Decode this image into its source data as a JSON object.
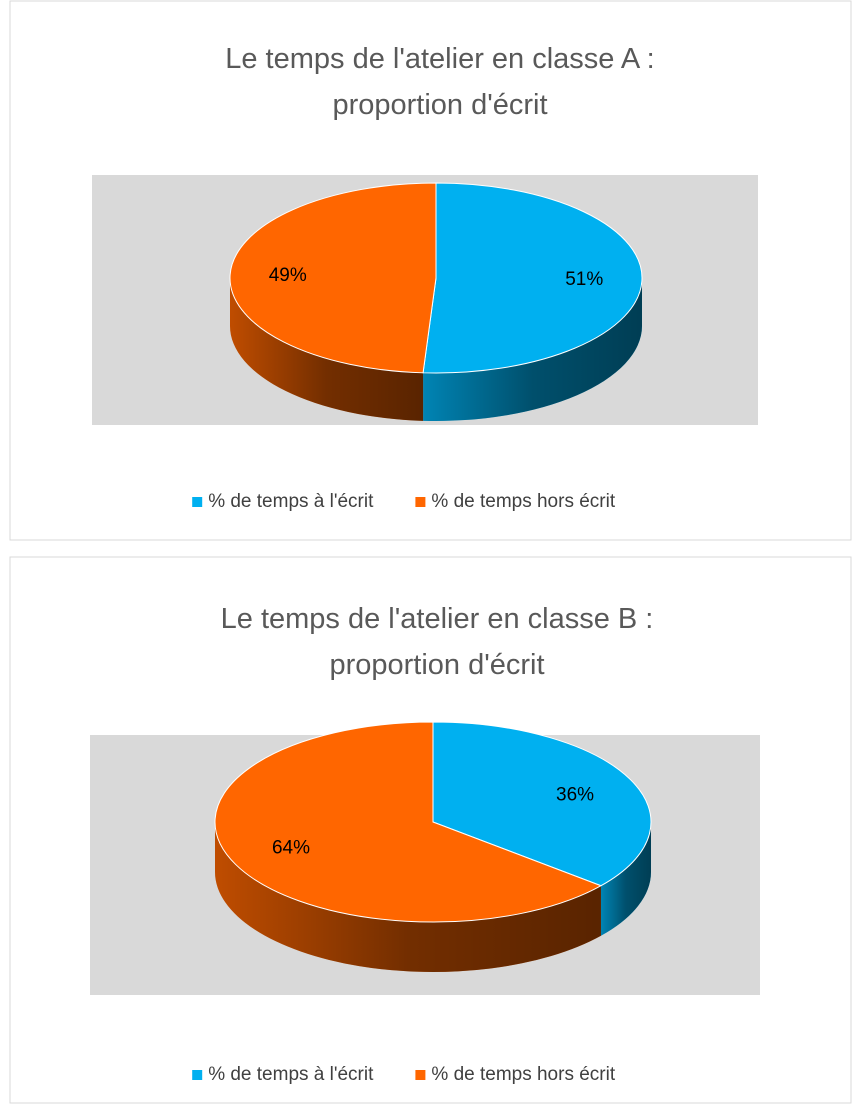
{
  "chart_data": [
    {
      "type": "pie3d",
      "title": "Le temps de l'atelier en classe A : proportion d'écrit",
      "categories": [
        "% de temps à l'écrit",
        "% de temps hors écrit"
      ],
      "values": [
        51,
        49
      ],
      "value_labels": [
        "51%",
        "49%"
      ],
      "colors": [
        "#00b0f0",
        "#ff6600"
      ],
      "legend": "bottom"
    },
    {
      "type": "pie3d",
      "title": "Le temps de l'atelier en classe B : proportion d'écrit",
      "categories": [
        "% de temps à l'écrit",
        "% de temps hors écrit"
      ],
      "values": [
        36,
        64
      ],
      "value_labels": [
        "36%",
        "64%"
      ],
      "colors": [
        "#00b0f0",
        "#ff6600"
      ],
      "legend": "bottom"
    }
  ]
}
